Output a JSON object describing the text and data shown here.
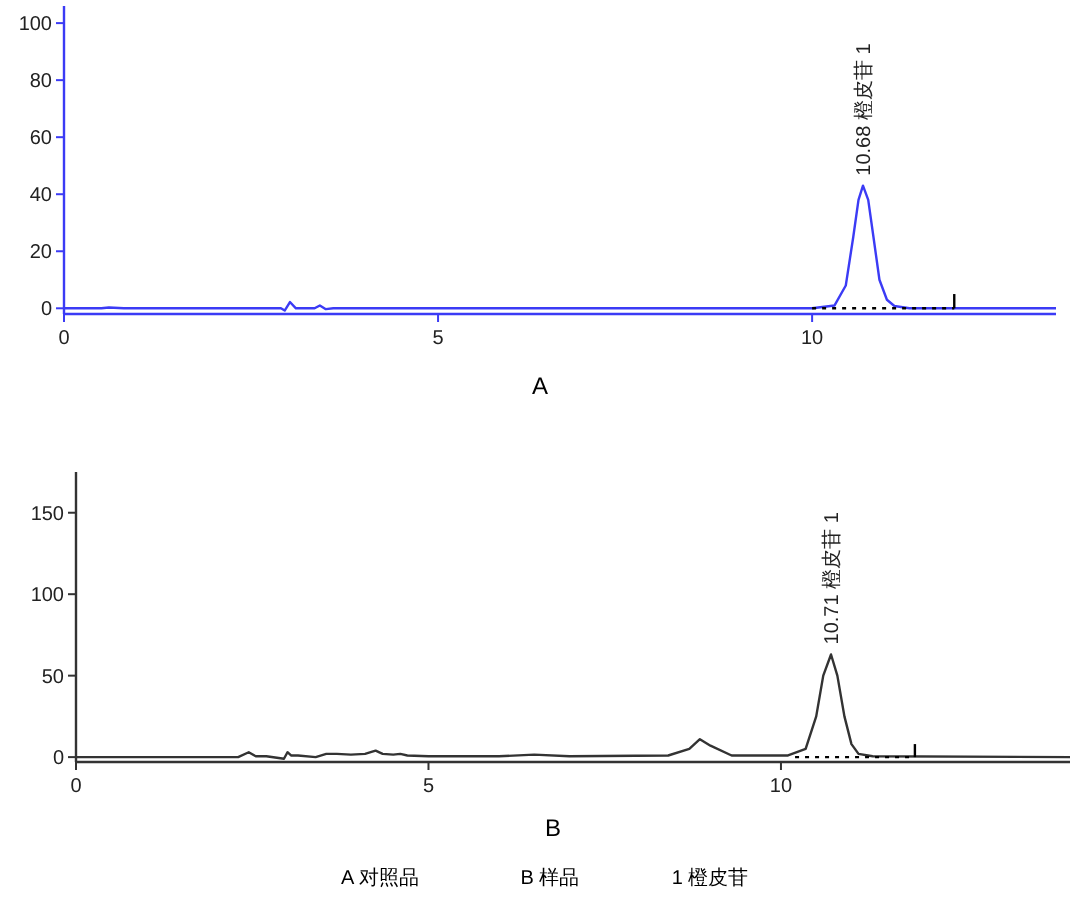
{
  "chart_data": [
    {
      "type": "line",
      "xlabel": "A",
      "xlim": [
        0,
        13.26
      ],
      "ylim": [
        -2,
        106
      ],
      "xticks": [
        0,
        5,
        10
      ],
      "yticks": [
        0,
        20,
        40,
        60,
        80,
        100
      ],
      "annotations": [
        {
          "text": "10.68 橙皮苷  1",
          "x": 10.68,
          "y": 43
        }
      ],
      "series": [
        {
          "color": "#3b3bf5",
          "x": [
            0,
            0.5,
            0.6,
            0.8,
            2.9,
            2.95,
            3.02,
            3.1,
            3.35,
            3.42,
            3.5,
            3.6,
            10.0,
            10.3,
            10.45,
            10.55,
            10.62,
            10.68,
            10.75,
            10.82,
            10.9,
            11.0,
            11.1,
            11.3,
            13.26
          ],
          "values": [
            0,
            0,
            0.3,
            0,
            0,
            -0.8,
            2.2,
            0,
            0,
            1,
            -0.3,
            0,
            0,
            1,
            8,
            25,
            38,
            43,
            38,
            25,
            10,
            3,
            0.8,
            0,
            0
          ]
        },
        {
          "color": "#000000",
          "line_style": "dotted",
          "x": [
            10.0,
            11.9
          ],
          "values": [
            0,
            0
          ]
        },
        {
          "color": "#000000",
          "x": [
            11.9,
            11.9
          ],
          "values": [
            0,
            5
          ]
        }
      ]
    },
    {
      "type": "line",
      "xlabel": "B",
      "xlim": [
        0,
        14.1
      ],
      "ylim": [
        -3,
        175
      ],
      "xticks": [
        0,
        5,
        10
      ],
      "yticks": [
        0,
        50,
        100,
        150
      ],
      "annotations": [
        {
          "text": "10.71 橙皮苷  1",
          "x": 10.71,
          "y": 63
        },
        "A 对照品",
        "B 样品",
        "1 橙皮苷"
      ],
      "series": [
        {
          "color": "#333333",
          "x": [
            0,
            2.3,
            2.45,
            2.55,
            2.7,
            2.95,
            3.0,
            3.05,
            3.15,
            3.4,
            3.55,
            3.7,
            3.9,
            4.1,
            4.25,
            4.35,
            4.5,
            4.6,
            4.7,
            5.0,
            6.0,
            6.5,
            7.0,
            8.4,
            8.7,
            8.85,
            9.0,
            9.3,
            10.1,
            10.35,
            10.5,
            10.6,
            10.71,
            10.8,
            10.9,
            11.0,
            11.1,
            11.3,
            14.1
          ],
          "values": [
            0,
            0,
            3,
            0.5,
            0.5,
            -1,
            3,
            1,
            1,
            0,
            2,
            2,
            1.5,
            2,
            4,
            2,
            1.5,
            2,
            1,
            0.5,
            0.5,
            1.5,
            0.5,
            1,
            5,
            11,
            7,
            1,
            1,
            5,
            25,
            50,
            63,
            50,
            25,
            8,
            2,
            0.5,
            0
          ]
        },
        {
          "color": "#000000",
          "line_style": "dotted",
          "x": [
            10.2,
            11.9
          ],
          "values": [
            0,
            0
          ]
        },
        {
          "color": "#000000",
          "x": [
            11.9,
            11.9
          ],
          "values": [
            0,
            8
          ]
        }
      ]
    }
  ]
}
